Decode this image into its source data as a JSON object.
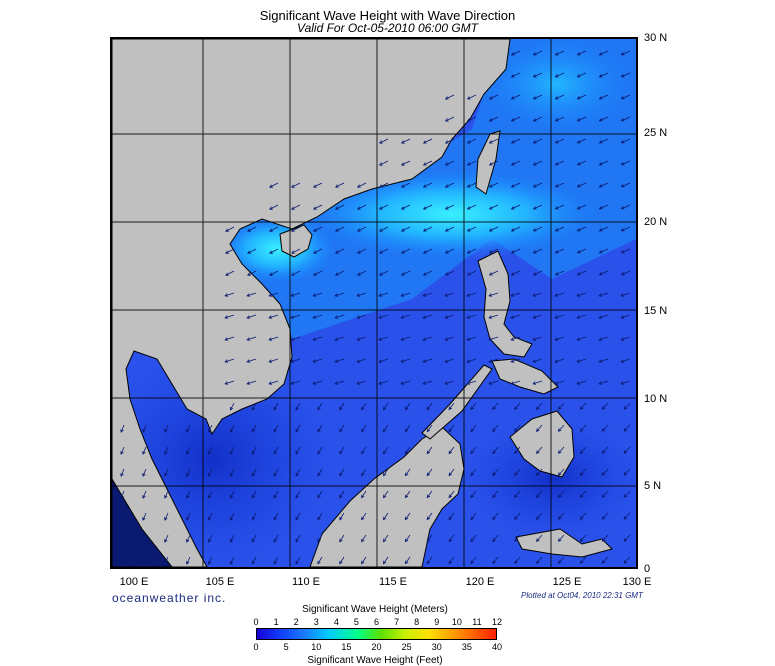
{
  "title": "Significant Wave Height with Wave Direction",
  "subtitle": "Valid For Oct-05-2010 06:00 GMT",
  "lat_labels": [
    "30 N",
    "25 N",
    "20 N",
    "15 N",
    "10 N",
    "5 N",
    "0"
  ],
  "lon_labels": [
    "100 E",
    "105 E",
    "110 E",
    "115 E",
    "120 E",
    "125 E",
    "130 E"
  ],
  "brand": "oceanweather inc.",
  "plotted": "Plotted at Oct04, 2010 22:31 GMT",
  "colorbar": {
    "title_meters": "Significant Wave Height (Meters)",
    "title_feet": "Significant Wave Height (Feet)",
    "meters": [
      "0",
      "1",
      "2",
      "3",
      "4",
      "5",
      "6",
      "7",
      "8",
      "9",
      "10",
      "11",
      "12"
    ],
    "feet": [
      "0",
      "5",
      "10",
      "15",
      "20",
      "25",
      "30",
      "35",
      "40"
    ]
  },
  "colors": {
    "land": "#c0c0c0",
    "sea_deep": "#2a4ee8",
    "sea_high": "#1a9cff",
    "sea_peak": "#30e8ff",
    "gulf": "#1030d0"
  }
}
